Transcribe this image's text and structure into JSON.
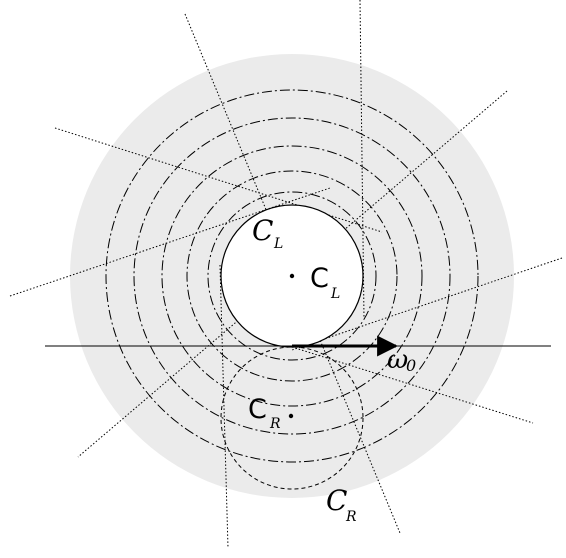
{
  "labels": {
    "script_c": "C",
    "roman_c": "C",
    "sub_l": "L",
    "sub_r": "R",
    "omega": "ω",
    "omega_sub": "0"
  },
  "colors": {
    "disk_fill": "#ebebeb",
    "stroke": "#000000",
    "inner_disk": "#ffffff"
  }
}
